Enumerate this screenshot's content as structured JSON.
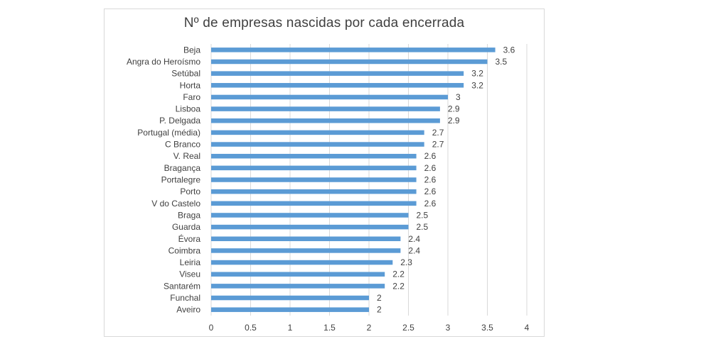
{
  "chart_data": {
    "type": "bar",
    "orientation": "horizontal",
    "title": "Nº de empresas nascidas por cada encerrada",
    "categories": [
      "Beja",
      "Angra do Heroísmo",
      "Setúbal",
      "Horta",
      "Faro",
      "Lisboa",
      "P. Delgada",
      "Portugal (média)",
      "C Branco",
      "V. Real",
      "Bragança",
      "Portalegre",
      "Porto",
      "V do Castelo",
      "Braga",
      "Guarda",
      "Évora",
      "Coimbra",
      "Leiria",
      "Viseu",
      "Santarém",
      "Funchal",
      "Aveiro"
    ],
    "values": [
      3.6,
      3.5,
      3.2,
      3.2,
      3,
      2.9,
      2.9,
      2.7,
      2.7,
      2.6,
      2.6,
      2.6,
      2.6,
      2.6,
      2.5,
      2.5,
      2.4,
      2.4,
      2.3,
      2.2,
      2.2,
      2,
      2
    ],
    "value_labels": [
      "3.6",
      "3.5",
      "3.2",
      "3.2",
      "3",
      "2.9",
      "2.9",
      "2.7",
      "2.7",
      "2.6",
      "2.6",
      "2.6",
      "2.6",
      "2.6",
      "2.5",
      "2.5",
      "2.4",
      "2.4",
      "2.3",
      "2.2",
      "2.2",
      "2",
      "2"
    ],
    "xlim": [
      0,
      4
    ],
    "xticks": [
      "0",
      "0.5",
      "1",
      "1.5",
      "2",
      "2.5",
      "3",
      "3.5",
      "4"
    ],
    "grid": "vertical",
    "legend": "none",
    "bar_color": "#5b9bd5",
    "grid_color": "#d9d9d9",
    "text_color": "#404040"
  }
}
